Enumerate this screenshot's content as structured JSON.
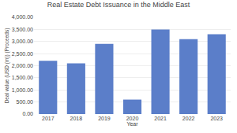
{
  "chart_data": {
    "type": "bar",
    "title": "Real Estate Debt Issuance in the Middle East",
    "xlabel": "Year",
    "ylabel": "Deal value (USD (m)) (Proceeds)",
    "categories": [
      "2017",
      "2018",
      "2019",
      "2020",
      "2021",
      "2022",
      "2023"
    ],
    "values": [
      2200,
      2100,
      2900,
      600,
      3500,
      3100,
      3300
    ],
    "color": "#5b7ec9",
    "ylim": [
      0,
      4000
    ],
    "yticks": [
      {
        "value": 0,
        "label": "0.00"
      },
      {
        "value": 500,
        "label": "500.00"
      },
      {
        "value": 1000,
        "label": "1,000.00"
      },
      {
        "value": 1500,
        "label": "1,500.00"
      },
      {
        "value": 2000,
        "label": "2,000.00"
      },
      {
        "value": 2500,
        "label": "2,500.00"
      },
      {
        "value": 3000,
        "label": "3,000.00"
      },
      {
        "value": 3500,
        "label": "3,500.00"
      },
      {
        "value": 4000,
        "label": "4,000.00"
      }
    ],
    "grid": true
  }
}
